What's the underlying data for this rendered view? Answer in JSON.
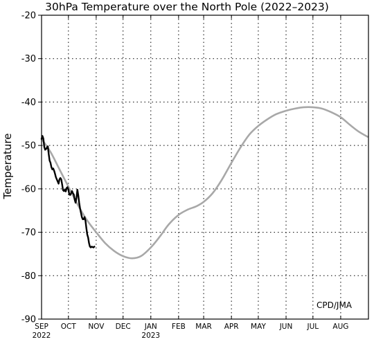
{
  "chart_data": {
    "type": "line",
    "title": "30hPa Temperature over the North Pole (2022–2023)",
    "ylabel": "Temperature",
    "xlabel": "",
    "credit": "CPD/JMA",
    "x_axis": {
      "range_days_from_sep1": [
        0,
        365
      ],
      "ticks": [
        {
          "label": "SEP",
          "sublabel": "2022",
          "date": "2022-09-01"
        },
        {
          "label": "OCT",
          "sublabel": "",
          "date": "2022-10-01"
        },
        {
          "label": "NOV",
          "sublabel": "",
          "date": "2022-11-01"
        },
        {
          "label": "DEC",
          "sublabel": "",
          "date": "2022-12-01"
        },
        {
          "label": "JAN",
          "sublabel": "2023",
          "date": "2023-01-01"
        },
        {
          "label": "FEB",
          "sublabel": "",
          "date": "2023-02-01"
        },
        {
          "label": "MAR",
          "sublabel": "",
          "date": "2023-03-01"
        },
        {
          "label": "APR",
          "sublabel": "",
          "date": "2023-04-01"
        },
        {
          "label": "MAY",
          "sublabel": "",
          "date": "2023-05-01"
        },
        {
          "label": "JUN",
          "sublabel": "",
          "date": "2023-06-01"
        },
        {
          "label": "JUL",
          "sublabel": "",
          "date": "2023-07-01"
        },
        {
          "label": "AUG",
          "sublabel": "",
          "date": "2023-08-01"
        }
      ]
    },
    "y_axis": {
      "ylim": [
        -90,
        -20
      ],
      "ticks": [
        "-20",
        "-30",
        "-40",
        "-50",
        "-60",
        "-70",
        "-80",
        "-90"
      ],
      "tick_values": [
        -20,
        -30,
        -40,
        -50,
        -60,
        -70,
        -80,
        -90
      ]
    },
    "grid": true,
    "series": [
      {
        "color": "#a8a8a8",
        "points": [
          [
            "2022-09-01",
            -48.5
          ],
          [
            "2022-09-11",
            -51.5
          ],
          [
            "2022-09-21",
            -55.5
          ],
          [
            "2022-10-01",
            -59.5
          ],
          [
            "2022-10-11",
            -63.5
          ],
          [
            "2022-10-21",
            -67.0
          ],
          [
            "2022-11-01",
            -70.0
          ],
          [
            "2022-11-11",
            -72.5
          ],
          [
            "2022-11-21",
            -74.3
          ],
          [
            "2022-12-01",
            -75.5
          ],
          [
            "2022-12-11",
            -76.0
          ],
          [
            "2022-12-21",
            -75.5
          ],
          [
            "2023-01-01",
            -73.5
          ],
          [
            "2023-01-11",
            -71.0
          ],
          [
            "2023-01-21",
            -68.2
          ],
          [
            "2023-02-01",
            -66.0
          ],
          [
            "2023-02-11",
            -64.8
          ],
          [
            "2023-02-21",
            -64.0
          ],
          [
            "2023-03-01",
            -63.0
          ],
          [
            "2023-03-11",
            -61.0
          ],
          [
            "2023-03-21",
            -58.0
          ],
          [
            "2023-04-01",
            -54.0
          ],
          [
            "2023-04-11",
            -50.5
          ],
          [
            "2023-04-21",
            -47.5
          ],
          [
            "2023-05-01",
            -45.5
          ],
          [
            "2023-05-11",
            -44.0
          ],
          [
            "2023-05-21",
            -42.8
          ],
          [
            "2023-06-01",
            -42.0
          ],
          [
            "2023-06-11",
            -41.5
          ],
          [
            "2023-06-21",
            -41.2
          ],
          [
            "2023-07-01",
            -41.2
          ],
          [
            "2023-07-11",
            -41.5
          ],
          [
            "2023-07-21",
            -42.3
          ],
          [
            "2023-08-01",
            -43.5
          ],
          [
            "2023-08-11",
            -45.2
          ],
          [
            "2023-08-21",
            -46.8
          ],
          [
            "2023-08-31",
            -48.0
          ]
        ]
      },
      {
        "color": "#000000",
        "points": [
          [
            "2022-09-01",
            -48.5
          ],
          [
            "2022-09-02",
            -47.8
          ],
          [
            "2022-09-03",
            -48.4
          ],
          [
            "2022-09-04",
            -50.3
          ],
          [
            "2022-09-05",
            -51.0
          ],
          [
            "2022-09-06",
            -50.8
          ],
          [
            "2022-09-07",
            -50.5
          ],
          [
            "2022-09-08",
            -50.2
          ],
          [
            "2022-09-09",
            -52.0
          ],
          [
            "2022-09-10",
            -53.5
          ],
          [
            "2022-09-11",
            -54.0
          ],
          [
            "2022-09-12",
            -55.0
          ],
          [
            "2022-09-13",
            -55.5
          ],
          [
            "2022-09-14",
            -55.3
          ],
          [
            "2022-09-15",
            -55.8
          ],
          [
            "2022-09-16",
            -56.5
          ],
          [
            "2022-09-17",
            -57.3
          ],
          [
            "2022-09-18",
            -57.8
          ],
          [
            "2022-09-19",
            -58.3
          ],
          [
            "2022-09-20",
            -58.8
          ],
          [
            "2022-09-21",
            -57.8
          ],
          [
            "2022-09-22",
            -57.5
          ],
          [
            "2022-09-23",
            -57.8
          ],
          [
            "2022-09-24",
            -59.0
          ],
          [
            "2022-09-25",
            -60.3
          ],
          [
            "2022-09-26",
            -60.5
          ],
          [
            "2022-09-27",
            -60.2
          ],
          [
            "2022-09-28",
            -60.6
          ],
          [
            "2022-09-29",
            -59.8
          ],
          [
            "2022-09-30",
            -59.6
          ],
          [
            "2022-10-01",
            -60.2
          ],
          [
            "2022-10-02",
            -61.3
          ],
          [
            "2022-10-03",
            -61.4
          ],
          [
            "2022-10-04",
            -61.0
          ],
          [
            "2022-10-05",
            -60.5
          ],
          [
            "2022-10-06",
            -61.0
          ],
          [
            "2022-10-07",
            -61.3
          ],
          [
            "2022-10-08",
            -62.5
          ],
          [
            "2022-10-09",
            -63.2
          ],
          [
            "2022-10-10",
            -62.0
          ],
          [
            "2022-10-11",
            -60.2
          ],
          [
            "2022-10-12",
            -61.5
          ],
          [
            "2022-10-13",
            -63.2
          ],
          [
            "2022-10-14",
            -64.5
          ],
          [
            "2022-10-15",
            -65.5
          ],
          [
            "2022-10-16",
            -66.5
          ],
          [
            "2022-10-17",
            -67.0
          ],
          [
            "2022-10-18",
            -67.0
          ],
          [
            "2022-10-19",
            -66.5
          ],
          [
            "2022-10-20",
            -67.3
          ],
          [
            "2022-10-21",
            -69.0
          ],
          [
            "2022-10-22",
            -70.5
          ],
          [
            "2022-10-23",
            -71.2
          ],
          [
            "2022-10-24",
            -72.5
          ],
          [
            "2022-10-25",
            -73.3
          ],
          [
            "2022-10-26",
            -73.5
          ],
          [
            "2022-10-27",
            -73.3
          ],
          [
            "2022-10-28",
            -73.4
          ],
          [
            "2022-10-29",
            -73.5
          ],
          [
            "2022-10-30",
            -73.3
          ]
        ]
      }
    ]
  }
}
